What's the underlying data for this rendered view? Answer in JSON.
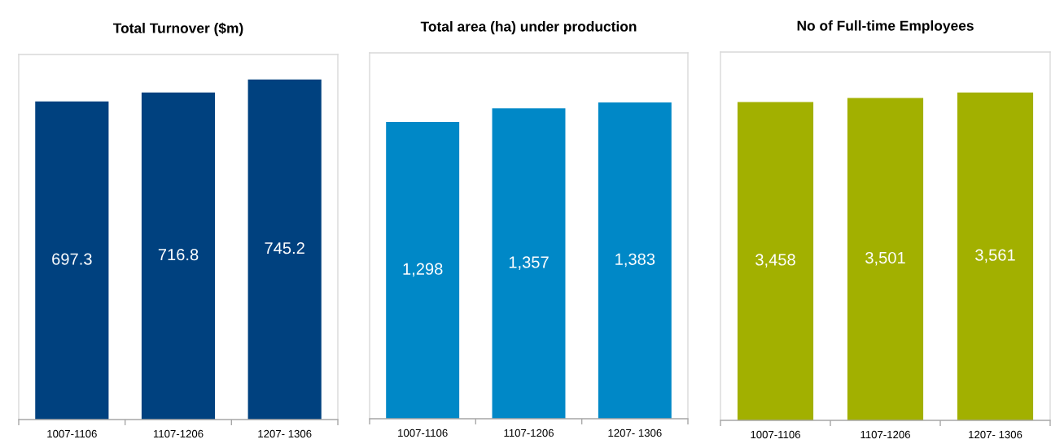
{
  "chart_data": [
    {
      "type": "bar",
      "title": "Total Turnover ($m)",
      "categories": [
        "1007-1106",
        "1107-1206",
        "1207- 1306"
      ],
      "values": [
        697.3,
        716.8,
        745.2
      ],
      "color": "#00417f",
      "data_labels": true,
      "ylim": [
        0,
        800
      ],
      "tick_labels": "x"
    },
    {
      "type": "bar",
      "title": "Total area (ha) under production",
      "categories": [
        "1007-1106",
        "1107-1206",
        "1207- 1306"
      ],
      "values": [
        1298,
        1357,
        1383
      ],
      "value_labels": [
        "1,298",
        "1,357",
        "1,383"
      ],
      "color": "#0088c7",
      "ylim": [
        0,
        1600
      ],
      "tick_labels": "x"
    },
    {
      "type": "bar",
      "title": "No of Full-time Employees",
      "categories": [
        "1007-1106",
        "1107-1206",
        "1207- 1306"
      ],
      "values": [
        3458,
        3501,
        3561
      ],
      "value_labels": [
        "3,458",
        "3,501",
        "3,561"
      ],
      "color": "#a2b000",
      "ylim": [
        0,
        4000
      ],
      "tick_labels": "x"
    }
  ]
}
